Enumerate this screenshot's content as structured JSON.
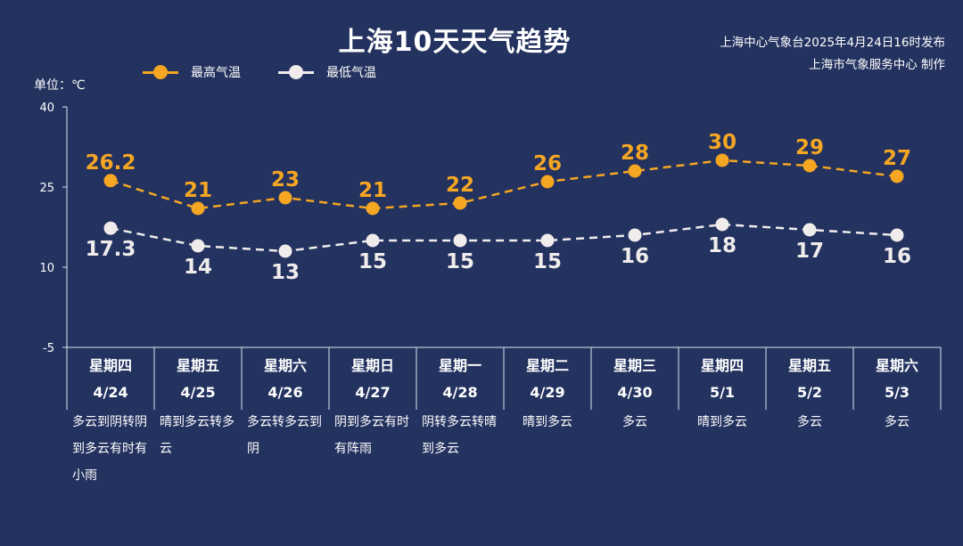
{
  "header": {
    "title": "上海10天天气趋势",
    "credit_line1": "上海中心气象台2025年4月24日16时发布",
    "credit_line2": "上海市气象服务中心 制作"
  },
  "unit_label": "单位：℃",
  "legend": {
    "high": "最高气温",
    "low": "最低气温"
  },
  "colors": {
    "background": "#23325f",
    "high": "#f5a623",
    "low": "#f0ecec",
    "axis": "#dfe6f0"
  },
  "chart_data": {
    "type": "line",
    "yticks": [
      "40",
      "25",
      "10",
      "-5"
    ],
    "ylim": [
      -5,
      40
    ],
    "x": [
      "4/24",
      "4/25",
      "4/26",
      "4/27",
      "4/28",
      "4/29",
      "4/30",
      "5/1",
      "5/2",
      "5/3"
    ],
    "series": [
      {
        "name": "最高气温",
        "values": [
          26.2,
          21,
          23,
          21,
          22,
          26,
          28,
          30,
          29,
          27
        ],
        "labels": [
          "26.2",
          "21",
          "23",
          "21",
          "22",
          "26",
          "28",
          "30",
          "29",
          "27"
        ]
      },
      {
        "name": "最低气温",
        "values": [
          17.3,
          14,
          13,
          15,
          15,
          15,
          16,
          18,
          17,
          16
        ],
        "labels": [
          "17.3",
          "14",
          "13",
          "15",
          "15",
          "15",
          "16",
          "18",
          "17",
          "16"
        ]
      }
    ]
  },
  "days": [
    {
      "weekday": "星期四",
      "date": "4/24",
      "weather": "多云到阴转阴到多云有时有小雨"
    },
    {
      "weekday": "星期五",
      "date": "4/25",
      "weather": "晴到多云转多云"
    },
    {
      "weekday": "星期六",
      "date": "4/26",
      "weather": "多云转多云到阴"
    },
    {
      "weekday": "星期日",
      "date": "4/27",
      "weather": "阴到多云有时有阵雨"
    },
    {
      "weekday": "星期一",
      "date": "4/28",
      "weather": "阴转多云转晴到多云"
    },
    {
      "weekday": "星期二",
      "date": "4/29",
      "weather": "晴到多云"
    },
    {
      "weekday": "星期三",
      "date": "4/30",
      "weather": "多云"
    },
    {
      "weekday": "星期四",
      "date": "5/1",
      "weather": "晴到多云"
    },
    {
      "weekday": "星期五",
      "date": "5/2",
      "weather": "多云"
    },
    {
      "weekday": "星期六",
      "date": "5/3",
      "weather": "多云"
    }
  ]
}
